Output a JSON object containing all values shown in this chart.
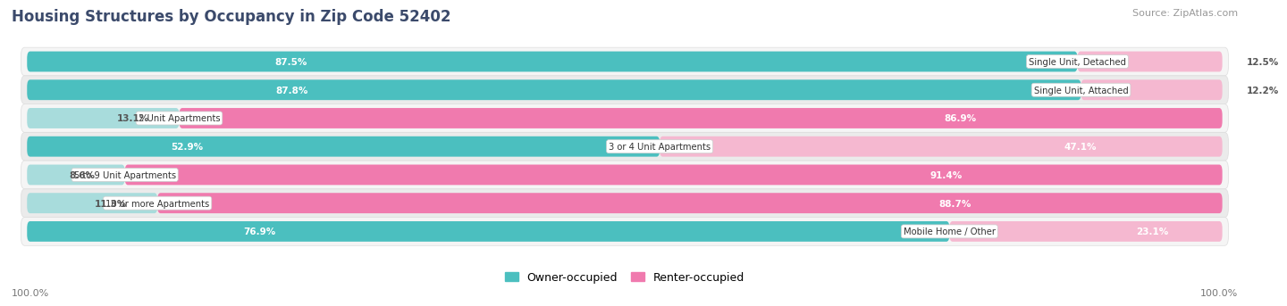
{
  "title": "Housing Structures by Occupancy in Zip Code 52402",
  "source": "Source: ZipAtlas.com",
  "categories": [
    "Single Unit, Detached",
    "Single Unit, Attached",
    "2 Unit Apartments",
    "3 or 4 Unit Apartments",
    "5 to 9 Unit Apartments",
    "10 or more Apartments",
    "Mobile Home / Other"
  ],
  "owner_pct": [
    87.5,
    87.8,
    13.1,
    52.9,
    8.6,
    11.3,
    76.9
  ],
  "renter_pct": [
    12.5,
    12.2,
    86.9,
    47.1,
    91.4,
    88.7,
    23.1
  ],
  "owner_color": "#4BBFBF",
  "owner_color_light": "#A8DCDC",
  "renter_color": "#F07AAE",
  "renter_color_light": "#F5B8D0",
  "bg_color": "#FFFFFF",
  "row_bg_even": "#F5F5F5",
  "row_bg_odd": "#EBEBEB",
  "title_color": "#3B4A6B",
  "source_color": "#999999",
  "legend_owner": "Owner-occupied",
  "legend_renter": "Renter-occupied"
}
